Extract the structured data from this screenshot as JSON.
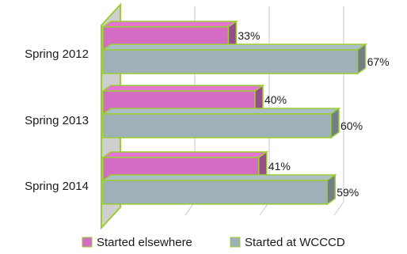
{
  "chart_data": {
    "type": "bar",
    "orientation": "horizontal",
    "style": "3d",
    "categories": [
      "Spring 2012",
      "Spring 2013",
      "Spring 2014"
    ],
    "series": [
      {
        "name": "Started elsewhere",
        "values": [
          33,
          40,
          41
        ],
        "labels": [
          "33%",
          "40%",
          "41%"
        ],
        "color": "#d36cc2"
      },
      {
        "name": "Started at WCCCD",
        "values": [
          67,
          60,
          59
        ],
        "labels": [
          "67%",
          "60%",
          "59%"
        ],
        "color": "#9fb0b8"
      }
    ],
    "xlim": [
      0,
      100
    ],
    "grid": true,
    "legend_position": "bottom",
    "edge_color": "#9acd32"
  }
}
